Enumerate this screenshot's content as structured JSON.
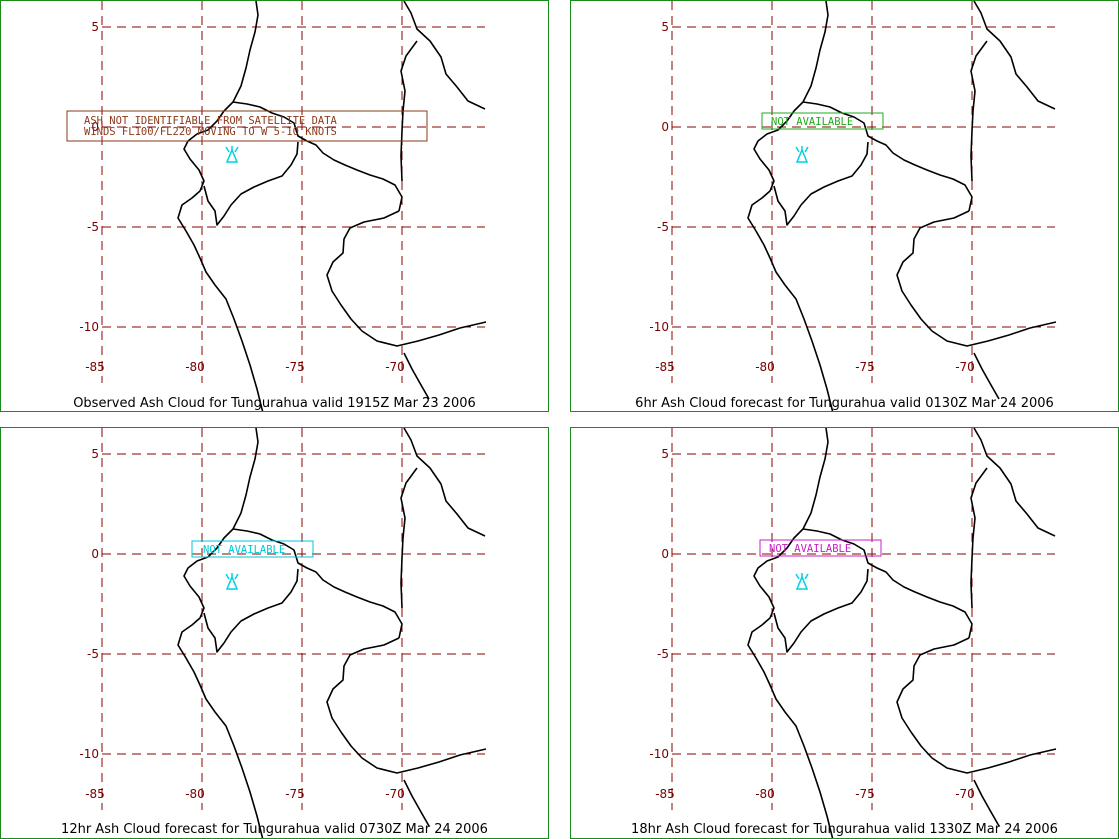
{
  "panels": [
    {
      "id": "observed",
      "caption": "Observed Ash Cloud for Tungurahua valid 1915Z Mar 23 2006",
      "annotation_lines": [
        "ASH NOT IDENTIFIABLE FROM SATELLITE DATA",
        "WINDS FL100/FL220 MOVING TO W 5-10 KNOTS"
      ],
      "annotation_color": "#8b3a1a"
    },
    {
      "id": "forecast-6hr",
      "caption": "6hr Ash Cloud forecast for Tungurahua valid 0130Z Mar 24 2006",
      "annotation_lines": [
        "NOT AVAILABLE"
      ],
      "annotation_color": "#1faa1f"
    },
    {
      "id": "forecast-12hr",
      "caption": "12hr Ash Cloud forecast for Tungurahua valid 0730Z Mar 24 2006",
      "annotation_lines": [
        "NOT AVAILABLE"
      ],
      "annotation_color": "#00c8d8"
    },
    {
      "id": "forecast-18hr",
      "caption": "18hr Ash Cloud forecast for Tungurahua valid 1330Z Mar 24 2006",
      "annotation_lines": [
        "NOT AVAILABLE"
      ],
      "annotation_color": "#c81ec8"
    }
  ],
  "map": {
    "lat_ticks": [
      "5",
      "0",
      "-5",
      "-10"
    ],
    "lon_ticks": [
      "-85",
      "-80",
      "-75",
      "-70"
    ],
    "grid_color": "#8b0000",
    "coast_color": "#000000",
    "volcano_color": "#00d0e0",
    "volcano_icon": "volcano-icon"
  }
}
